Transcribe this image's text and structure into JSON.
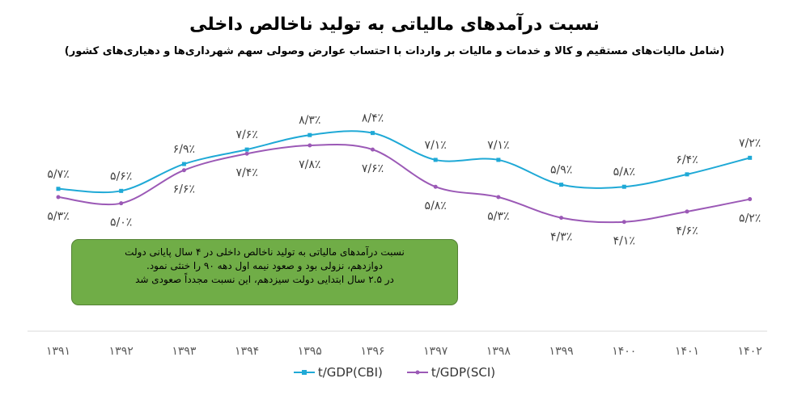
{
  "chart_data": {
    "type": "line",
    "title": "نسبت درآمدهای مالیاتی به تولید ناخالص داخلی",
    "subtitle": "(شامل مالیات‌های مستقیم و کالا و خدمات و مالیات بر واردات با احتساب عوارض وصولی سهم شهرداری‌ها و دهیاری‌های کشور)",
    "categories": [
      "۱۳۹۱",
      "۱۳۹۲",
      "۱۳۹۳",
      "۱۳۹۴",
      "۱۳۹۵",
      "۱۳۹۶",
      "۱۳۹۷",
      "۱۳۹۸",
      "۱۳۹۹",
      "۱۴۰۰",
      "۱۴۰۱",
      "۱۴۰۲"
    ],
    "series": [
      {
        "name": "t/GDP(CBI)",
        "color": "#1fa9d6",
        "values": [
          5.7,
          5.6,
          6.9,
          7.6,
          8.3,
          8.4,
          7.1,
          7.1,
          5.9,
          5.8,
          6.4,
          7.2
        ],
        "labels": [
          "۵/۷٪",
          "۵/۶٪",
          "۶/۹٪",
          "۷/۶٪",
          "۸/۳٪",
          "۸/۴٪",
          "۷/۱٪",
          "۷/۱٪",
          "۵/۹٪",
          "۵/۸٪",
          "۶/۴٪",
          "۷/۲٪"
        ]
      },
      {
        "name": "t/GDP(SCI)",
        "color": "#9b59b6",
        "values": [
          5.3,
          5.0,
          6.6,
          7.4,
          7.8,
          7.6,
          5.8,
          5.3,
          4.3,
          4.1,
          4.6,
          5.2
        ],
        "labels": [
          "۵/۳٪",
          "۵/۰٪",
          "۶/۶٪",
          "۷/۴٪",
          "۷/۸٪",
          "۷/۶٪",
          "۵/۸٪",
          "۵/۳٪",
          "۴/۳٪",
          "۴/۱٪",
          "۴/۶٪",
          "۵/۲٪"
        ]
      }
    ],
    "grid": false,
    "legend": "bottom",
    "annotation": [
      "نسبت درآمدهای مالیاتی به تولید ناخالص داخلی در ۴ سال پایانی دولت",
      "دوازدهم، نزولی بود و صعود نیمه اول دهه ۹۰ را خنثی نمود.",
      "در ۲.۵ سال ابتدایی دولت سیزدهم، این نسبت مجدداً صعودی شد"
    ]
  }
}
